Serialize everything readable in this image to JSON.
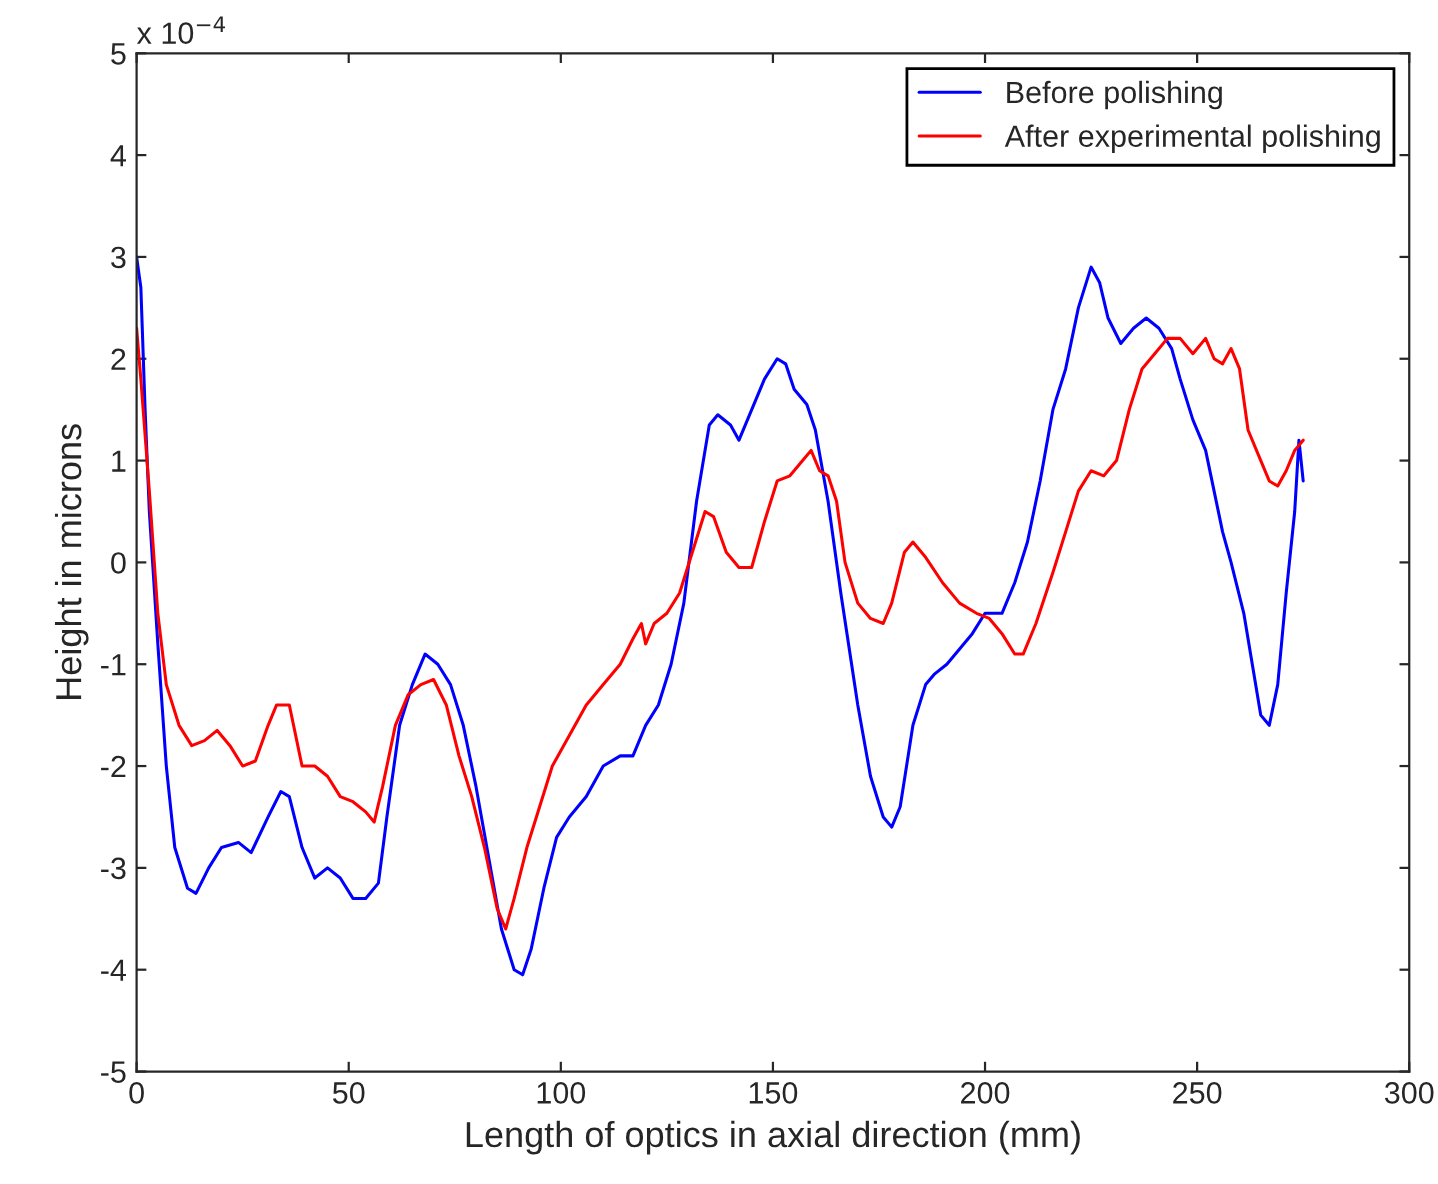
{
  "chart_data": {
    "type": "line",
    "xlabel": "Length of optics in axial direction (mm)",
    "ylabel": "Height in microns",
    "annotations": [
      "x 10$^{−4}$"
    ],
    "xlim": [
      0,
      300
    ],
    "xticks": [
      0,
      50,
      100,
      150,
      200,
      250,
      300
    ],
    "ylim": [
      -5,
      5
    ],
    "yticks": [
      -5,
      -4,
      -3,
      -2,
      -1,
      0,
      1,
      2,
      3,
      4,
      5
    ],
    "grid": false,
    "legend": "top right",
    "line_style": "solid",
    "series": [
      {
        "name": "Before polishing",
        "color": "#0000ff",
        "x": [
          0,
          1,
          2,
          3,
          5,
          7,
          9,
          12,
          14,
          17,
          20,
          24,
          27,
          31,
          34,
          36,
          39,
          42,
          45,
          48,
          51,
          54,
          57,
          59,
          62,
          65,
          68,
          71,
          74,
          77,
          80,
          83,
          86,
          89,
          91,
          93,
          96,
          99,
          102,
          106,
          110,
          114,
          117,
          120,
          123,
          126,
          129,
          132,
          135,
          137,
          140,
          142,
          145,
          148,
          151,
          153,
          155,
          158,
          160,
          163,
          166,
          170,
          173,
          176,
          178,
          180,
          183,
          186,
          188,
          191,
          194,
          197,
          200,
          204,
          207,
          210,
          213,
          216,
          219,
          222,
          225,
          227,
          229,
          232,
          235,
          238,
          241,
          244,
          246,
          249,
          252,
          254,
          256,
          258,
          261,
          263,
          265,
          267,
          269,
          271,
          273,
          274,
          275
        ],
        "values": [
          3.0,
          2.7,
          1.5,
          0.5,
          -0.8,
          -2.0,
          -2.8,
          -3.2,
          -3.25,
          -3.0,
          -2.8,
          -2.75,
          -2.85,
          -2.5,
          -2.25,
          -2.3,
          -2.8,
          -3.1,
          -3.0,
          -3.1,
          -3.3,
          -3.3,
          -3.15,
          -2.5,
          -1.6,
          -1.2,
          -0.9,
          -1.0,
          -1.2,
          -1.6,
          -2.2,
          -2.9,
          -3.6,
          -4.0,
          -4.05,
          -3.8,
          -3.2,
          -2.7,
          -2.5,
          -2.3,
          -2.0,
          -1.9,
          -1.9,
          -1.6,
          -1.4,
          -1.0,
          -0.4,
          0.6,
          1.35,
          1.45,
          1.35,
          1.2,
          1.5,
          1.8,
          2.0,
          1.95,
          1.7,
          1.55,
          1.3,
          0.6,
          -0.3,
          -1.4,
          -2.1,
          -2.5,
          -2.6,
          -2.4,
          -1.6,
          -1.2,
          -1.1,
          -1.0,
          -0.85,
          -0.7,
          -0.5,
          -0.5,
          -0.2,
          0.2,
          0.8,
          1.5,
          1.9,
          2.5,
          2.9,
          2.75,
          2.4,
          2.15,
          2.3,
          2.4,
          2.3,
          2.1,
          1.8,
          1.4,
          1.1,
          0.7,
          0.3,
          0.0,
          -0.5,
          -1.0,
          -1.5,
          -1.6,
          -1.2,
          -0.3,
          0.5,
          1.2,
          0.8
        ]
      },
      {
        "name": "After experimental polishing",
        "color": "#ff0000",
        "x": [
          0,
          1,
          3,
          5,
          7,
          10,
          13,
          16,
          19,
          22,
          25,
          28,
          31,
          33,
          36,
          39,
          42,
          45,
          48,
          51,
          54,
          56,
          58,
          61,
          64,
          67,
          70,
          73,
          76,
          79,
          82,
          85,
          87,
          89,
          92,
          95,
          98,
          102,
          106,
          110,
          114,
          117,
          119,
          120,
          122,
          125,
          128,
          131,
          134,
          136,
          139,
          142,
          145,
          148,
          151,
          154,
          157,
          159,
          161,
          163,
          165,
          167,
          170,
          173,
          176,
          178,
          181,
          183,
          186,
          190,
          194,
          198,
          201,
          204,
          207,
          209,
          212,
          216,
          219,
          222,
          225,
          228,
          231,
          234,
          237,
          240,
          243,
          246,
          249,
          252,
          254,
          256,
          258,
          260,
          262,
          265,
          267,
          269,
          271,
          273,
          275
        ],
        "values": [
          2.3,
          1.8,
          0.7,
          -0.5,
          -1.2,
          -1.6,
          -1.8,
          -1.75,
          -1.65,
          -1.8,
          -2.0,
          -1.95,
          -1.6,
          -1.4,
          -1.4,
          -2.0,
          -2.0,
          -2.1,
          -2.3,
          -2.35,
          -2.45,
          -2.55,
          -2.2,
          -1.6,
          -1.3,
          -1.2,
          -1.15,
          -1.4,
          -1.9,
          -2.3,
          -2.8,
          -3.4,
          -3.6,
          -3.3,
          -2.8,
          -2.4,
          -2.0,
          -1.7,
          -1.4,
          -1.2,
          -1.0,
          -0.75,
          -0.6,
          -0.8,
          -0.6,
          -0.5,
          -0.3,
          0.1,
          0.5,
          0.45,
          0.1,
          -0.05,
          -0.05,
          0.4,
          0.8,
          0.85,
          1.0,
          1.1,
          0.9,
          0.85,
          0.6,
          0.0,
          -0.4,
          -0.55,
          -0.6,
          -0.4,
          0.1,
          0.2,
          0.05,
          -0.2,
          -0.4,
          -0.5,
          -0.55,
          -0.7,
          -0.9,
          -0.9,
          -0.6,
          -0.1,
          0.3,
          0.7,
          0.9,
          0.85,
          1.0,
          1.5,
          1.9,
          2.05,
          2.2,
          2.2,
          2.05,
          2.2,
          2.0,
          1.95,
          2.1,
          1.9,
          1.3,
          1.0,
          0.8,
          0.75,
          0.9,
          1.1,
          1.2
        ]
      }
    ]
  }
}
